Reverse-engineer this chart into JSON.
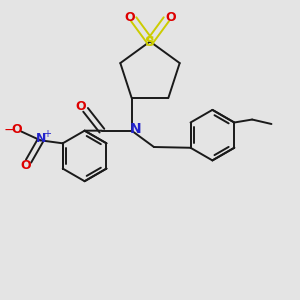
{
  "bg_color": "#e4e4e4",
  "bond_color": "#1a1a1a",
  "bond_width": 1.4,
  "S_color": "#cccc00",
  "O_color": "#dd0000",
  "N_color": "#2222cc",
  "figsize": [
    3.0,
    3.0
  ],
  "dpi": 100,
  "xlim": [
    0,
    10
  ],
  "ylim": [
    0,
    10
  ]
}
